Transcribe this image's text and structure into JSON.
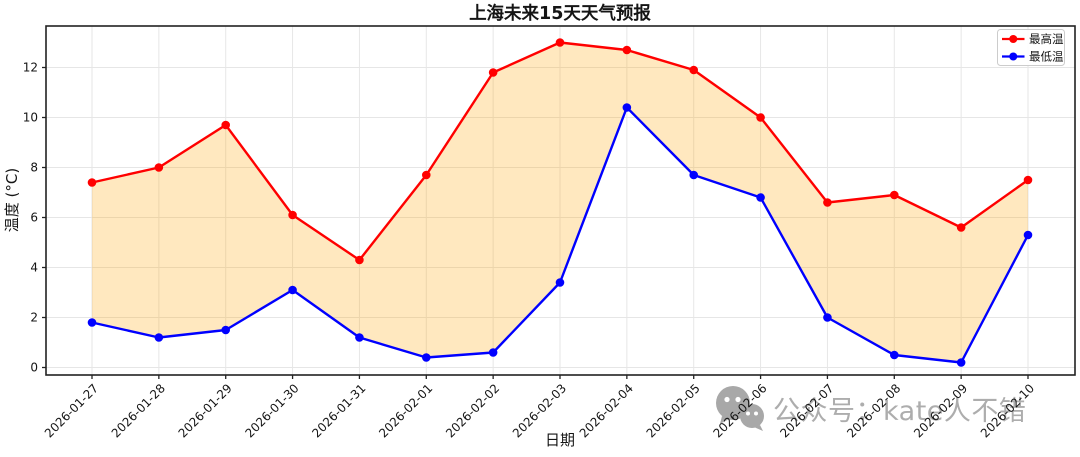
{
  "title": "上海未来15天天气预报",
  "watermark": {
    "icon": "wechat-icon",
    "text": "公众号：kate人不错",
    "color": "#adadad"
  },
  "chart_data": {
    "type": "line",
    "title": "上海未来15天天气预报",
    "xlabel": "日期",
    "ylabel": "温度 (°C)",
    "x": [
      "2026-01-27",
      "2026-01-28",
      "2026-01-29",
      "2026-01-30",
      "2026-01-31",
      "2026-02-01",
      "2026-02-02",
      "2026-02-03",
      "2026-02-04",
      "2026-02-05",
      "2026-02-06",
      "2026-02-07",
      "2026-02-08",
      "2026-02-09",
      "2026-02-10"
    ],
    "series": [
      {
        "name": "最高温",
        "color": "#ff0000",
        "values": [
          7.4,
          8.0,
          9.7,
          6.1,
          4.3,
          7.7,
          11.8,
          13.0,
          12.7,
          11.9,
          10.0,
          6.6,
          6.9,
          5.6,
          7.5
        ]
      },
      {
        "name": "最低温",
        "color": "#0000ff",
        "values": [
          1.8,
          1.2,
          1.5,
          3.1,
          1.2,
          0.4,
          0.6,
          3.4,
          10.4,
          7.7,
          6.8,
          2.0,
          0.5,
          0.2,
          5.3
        ]
      }
    ],
    "fill_between": {
      "color": "#ffa500",
      "opacity": 0.25
    },
    "yticks": [
      0,
      2,
      4,
      6,
      8,
      10,
      12
    ],
    "ylim": [
      -0.3,
      13.66
    ],
    "grid": true,
    "grid_color": "#e6e6e6",
    "legend_position": "upper right",
    "x_tick_rotation": 45
  }
}
